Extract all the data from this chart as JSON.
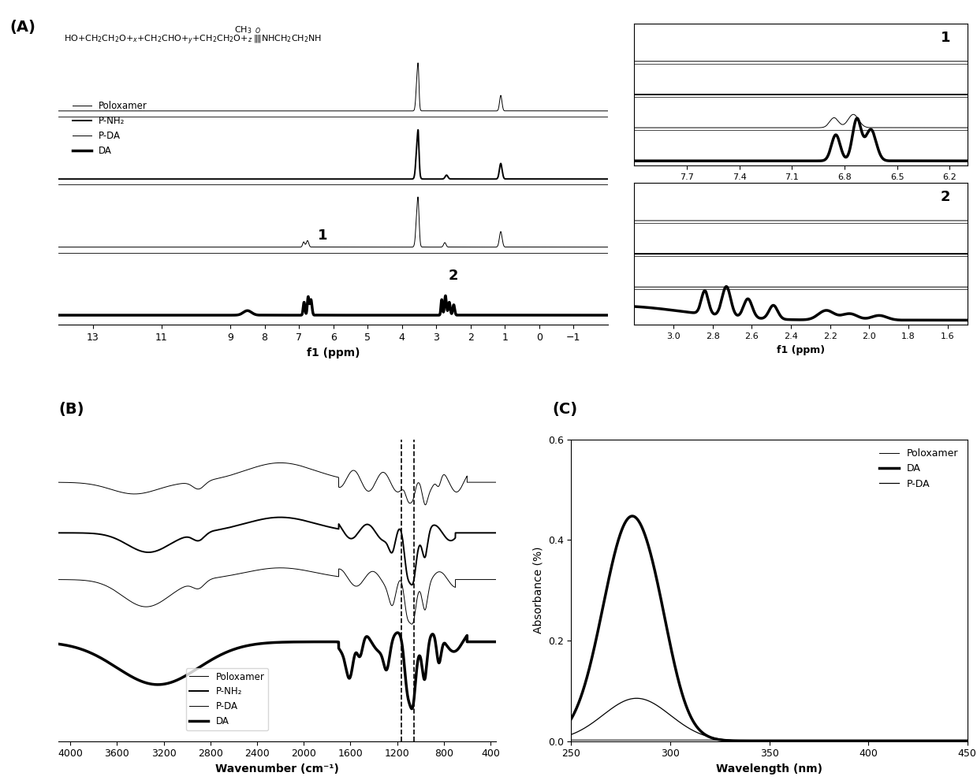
{
  "panel_A_label": "(A)",
  "panel_B_label": "(B)",
  "panel_C_label": "(C)",
  "nmr_main": {
    "xlabel": "f1 (ppm)",
    "xlim": [
      14.0,
      -2.0
    ],
    "xticks": [
      13,
      11,
      9,
      8,
      7,
      6,
      5,
      4,
      3,
      2,
      1,
      0,
      -1
    ],
    "legend": [
      "Poloxamer",
      "P-NH₂",
      "P-DA",
      "DA"
    ]
  },
  "nmr_inset1": {
    "label": "1",
    "xlabel": "f1 (ppm)",
    "xlim": [
      8.0,
      6.1
    ],
    "xticks": [
      7.7,
      7.4,
      7.1,
      6.8,
      6.5,
      6.2
    ]
  },
  "nmr_inset2": {
    "label": "2",
    "xlabel": "f1 (ppm)",
    "xlim": [
      3.2,
      1.5
    ],
    "xticks": [
      3.0,
      2.8,
      2.6,
      2.4,
      2.2,
      2.0,
      1.8,
      1.6
    ]
  },
  "ir": {
    "xlabel": "Wavenumber (cm⁻¹)",
    "xlim": [
      4100,
      350
    ],
    "xticks": [
      4000,
      3600,
      3200,
      2800,
      2400,
      2000,
      1600,
      1200,
      800,
      400
    ],
    "legend": [
      "Poloxamer",
      "P-NH₂",
      "P-DA",
      "DA"
    ]
  },
  "uv": {
    "xlabel": "Wavelength (nm)",
    "ylabel": "Absorbance (%)",
    "xlim": [
      250,
      450
    ],
    "xticks": [
      250,
      300,
      350,
      400,
      450
    ],
    "ylim": [
      0.0,
      0.6
    ],
    "yticks": [
      0.0,
      0.2,
      0.4,
      0.6
    ],
    "legend": [
      "Poloxamer",
      "DA",
      "P-DA"
    ]
  }
}
